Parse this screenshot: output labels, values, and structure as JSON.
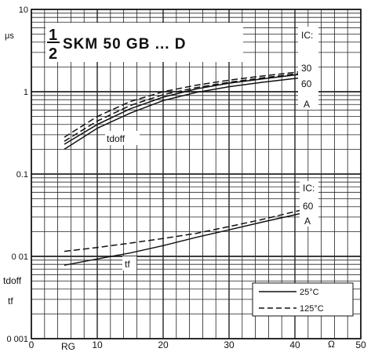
{
  "chart_data": {
    "type": "line",
    "title_fraction_num": "1",
    "title_fraction_den": "2",
    "title": "SKM 50 GB ... D",
    "x_axis": {
      "ticks": [
        "0",
        "10",
        "20",
        "30",
        "40",
        "50"
      ],
      "tick_values": [
        0,
        10,
        20,
        30,
        40,
        50
      ],
      "label": "RG",
      "unit": "Ω",
      "range": [
        0,
        50
      ]
    },
    "y_axis": {
      "scale": "log",
      "range": [
        0.001,
        10
      ],
      "ticks": [
        "10",
        "1",
        "0.1",
        "0 01",
        "0 001"
      ],
      "tick_values": [
        10,
        1,
        0.1,
        0.01,
        0.001
      ],
      "unit": "μs",
      "label_top": "tdoff",
      "label_bottom": "tf"
    },
    "annotations": {
      "tdoff": "tdoff",
      "tf": "tf",
      "ic_upper": [
        "IC:",
        "30",
        "60",
        "A"
      ],
      "ic_lower": [
        "IC:",
        "60",
        "A"
      ]
    },
    "legend": {
      "placement": "bottom-right",
      "entries": [
        {
          "label": "25°C",
          "style": "solid"
        },
        {
          "label": "125°C",
          "style": "dashed"
        }
      ]
    },
    "grid": true,
    "series": [
      {
        "group": "tdoff",
        "temperature": "25°C",
        "IC_A": 30,
        "style": "solid",
        "x": [
          5,
          10,
          15,
          20,
          25,
          30,
          35,
          40,
          42
        ],
        "y": [
          0.2,
          0.36,
          0.55,
          0.78,
          0.98,
          1.15,
          1.3,
          1.45,
          1.5
        ]
      },
      {
        "group": "tdoff",
        "temperature": "25°C",
        "IC_A": 60,
        "style": "solid",
        "x": [
          5,
          10,
          15,
          20,
          25,
          30,
          35,
          40,
          42
        ],
        "y": [
          0.23,
          0.4,
          0.62,
          0.86,
          1.08,
          1.27,
          1.43,
          1.6,
          1.66
        ]
      },
      {
        "group": "tdoff",
        "temperature": "125°C",
        "IC_A": 30,
        "style": "dashed",
        "x": [
          5,
          10,
          15,
          20,
          25,
          30,
          35,
          40,
          42
        ],
        "y": [
          0.25,
          0.44,
          0.68,
          0.92,
          1.12,
          1.3,
          1.47,
          1.64,
          1.7
        ]
      },
      {
        "group": "tdoff",
        "temperature": "125°C",
        "IC_A": 60,
        "style": "dashed",
        "x": [
          5,
          10,
          15,
          20,
          25,
          30,
          35,
          40,
          42
        ],
        "y": [
          0.28,
          0.5,
          0.76,
          1.0,
          1.2,
          1.38,
          1.55,
          1.72,
          1.8
        ]
      },
      {
        "group": "tf",
        "temperature": "25°C",
        "IC_A": 60,
        "style": "solid",
        "x": [
          5,
          10,
          15,
          20,
          25,
          30,
          35,
          40,
          42
        ],
        "y": [
          0.0078,
          0.0093,
          0.011,
          0.0135,
          0.017,
          0.021,
          0.026,
          0.032,
          0.035
        ]
      },
      {
        "group": "tf",
        "temperature": "125°C",
        "IC_A": 60,
        "style": "dashed",
        "x": [
          5,
          10,
          15,
          20,
          25,
          30,
          35,
          40,
          42
        ],
        "y": [
          0.0115,
          0.0128,
          0.0145,
          0.0165,
          0.019,
          0.023,
          0.028,
          0.035,
          0.038
        ]
      }
    ]
  }
}
